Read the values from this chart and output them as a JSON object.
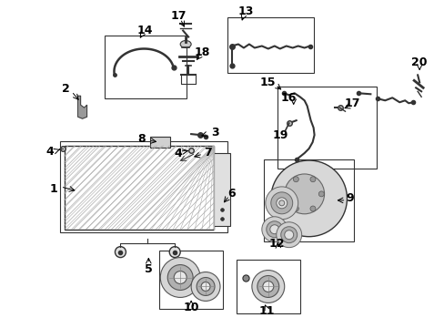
{
  "bg_color": "#ffffff",
  "fig_width": 4.89,
  "fig_height": 3.6,
  "dpi": 100,
  "line_color": "#333333",
  "fill_color": "#888888"
}
